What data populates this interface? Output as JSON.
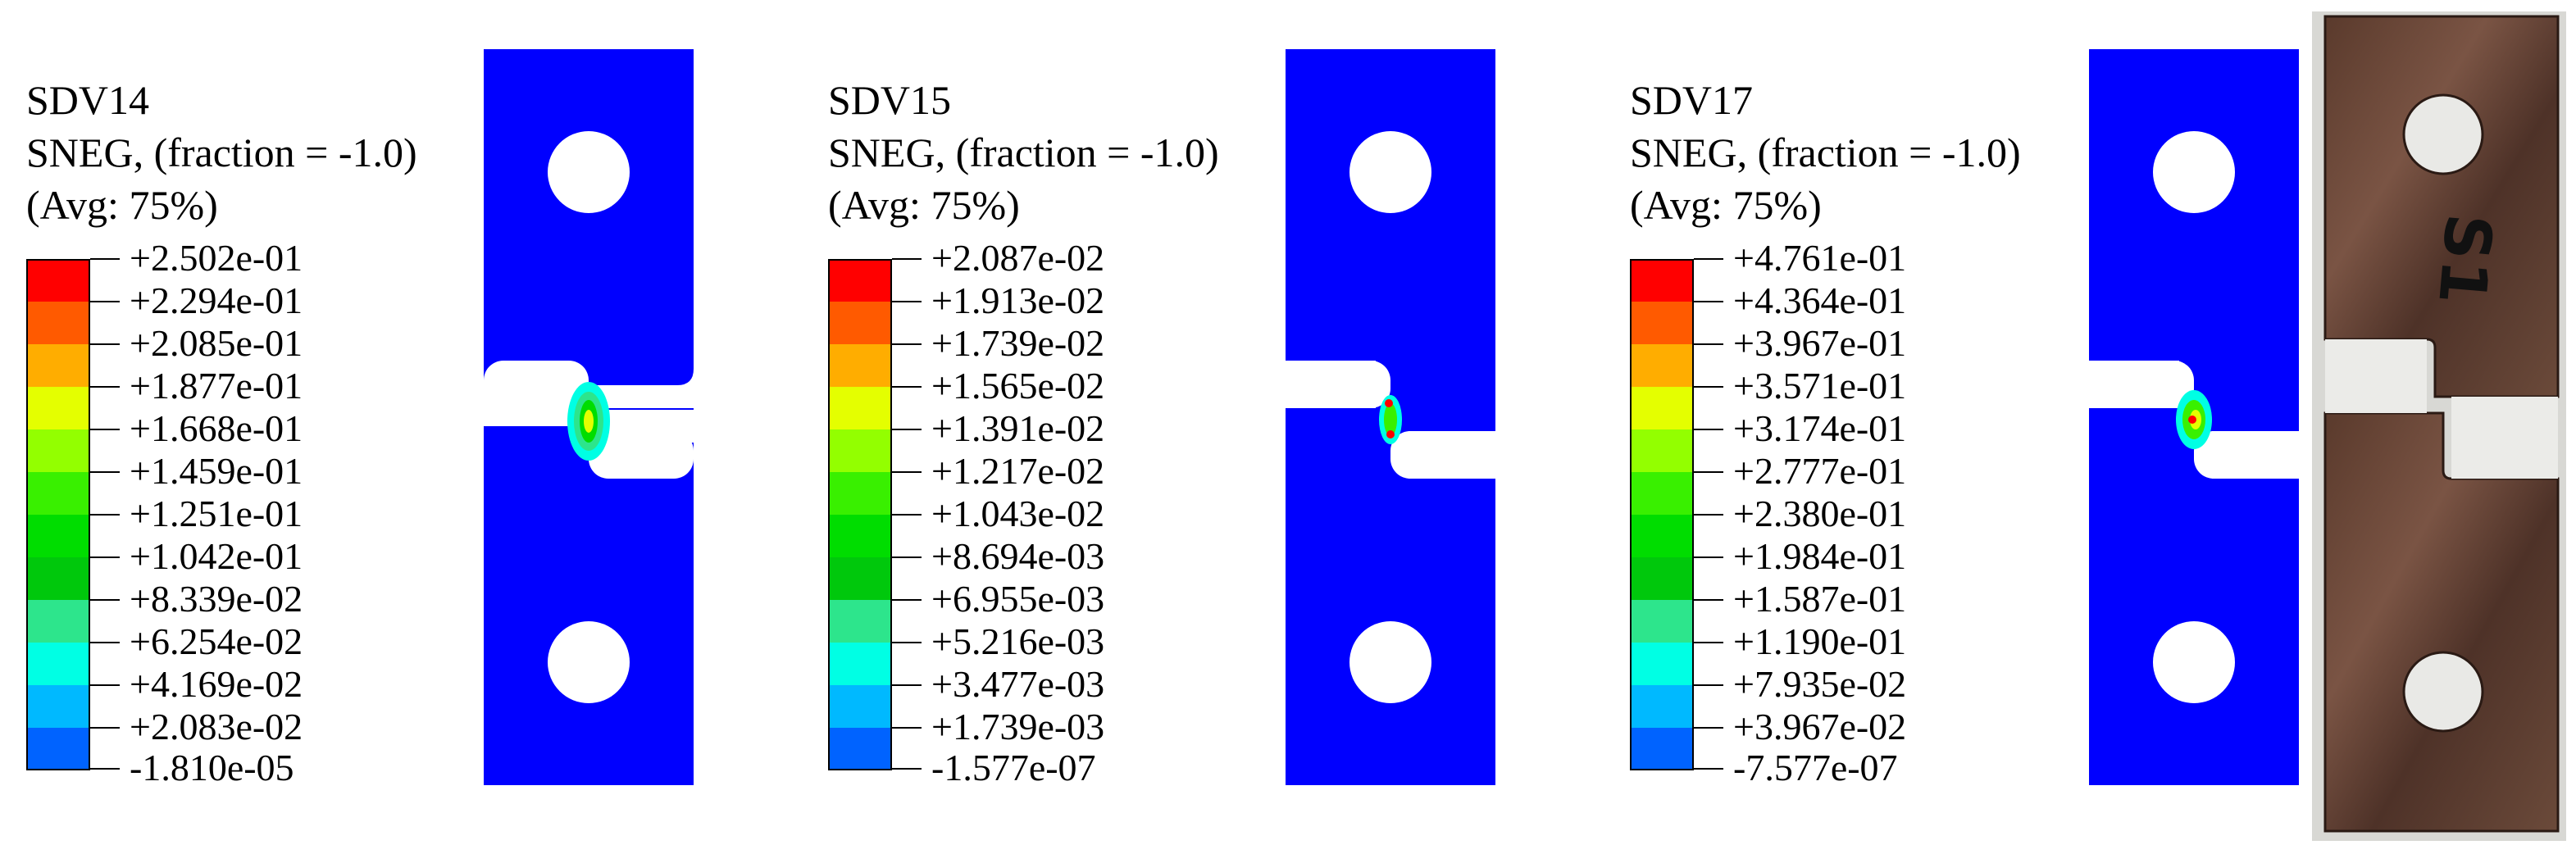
{
  "panels": [
    {
      "id": "sdv14",
      "variable": "SDV14",
      "subtitle": "SNEG, (fraction = -1.0)",
      "averaging": "(Avg: 75%)",
      "legend_values": [
        "+2.502e-01",
        "+2.294e-01",
        "+2.085e-01",
        "+1.877e-01",
        "+1.668e-01",
        "+1.459e-01",
        "+1.251e-01",
        "+1.042e-01",
        "+8.339e-02",
        "+6.254e-02",
        "+4.169e-02",
        "+2.083e-02",
        "-1.810e-05"
      ]
    },
    {
      "id": "sdv15",
      "variable": "SDV15",
      "subtitle": "SNEG, (fraction = -1.0)",
      "averaging": "(Avg: 75%)",
      "legend_values": [
        "+2.087e-02",
        "+1.913e-02",
        "+1.739e-02",
        "+1.565e-02",
        "+1.391e-02",
        "+1.217e-02",
        "+1.043e-02",
        "+8.694e-03",
        "+6.955e-03",
        "+5.216e-03",
        "+3.477e-03",
        "+1.739e-03",
        "-1.577e-07"
      ]
    },
    {
      "id": "sdv17",
      "variable": "SDV17",
      "subtitle": "SNEG, (fraction = -1.0)",
      "averaging": "(Avg: 75%)",
      "legend_values": [
        "+4.761e-01",
        "+4.364e-01",
        "+3.967e-01",
        "+3.571e-01",
        "+3.174e-01",
        "+2.777e-01",
        "+2.380e-01",
        "+1.984e-01",
        "+1.587e-01",
        "+1.190e-01",
        "+7.935e-02",
        "+3.967e-02",
        "-7.577e-07"
      ]
    }
  ],
  "legend_colors": [
    "#ff0000",
    "#ff5a00",
    "#ffad00",
    "#e4ff00",
    "#93ff00",
    "#39f000",
    "#00dd00",
    "#00c80c",
    "#2de58c",
    "#00ffe4",
    "#00b9ff",
    "#0063ff",
    "#0000ff"
  ],
  "specimen_color": "#0000ff",
  "photo_label": "S1"
}
